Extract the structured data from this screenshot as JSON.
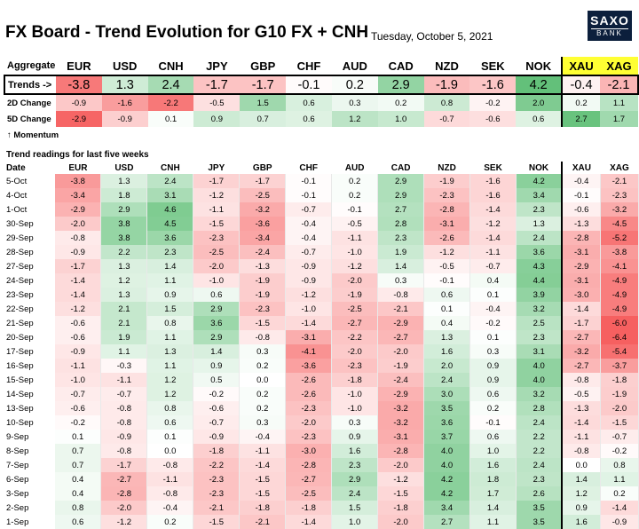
{
  "header": {
    "title": "FX Board - Trend Evolution for G10 FX + CNH",
    "date": "Tuesday, October 5, 2021",
    "logo_line1": "SAXO",
    "logo_line2": "BANK"
  },
  "columns": [
    "EUR",
    "USD",
    "CNH",
    "JPY",
    "GBP",
    "CHF",
    "AUD",
    "CAD",
    "NZD",
    "SEK",
    "NOK",
    "XAU",
    "XAG"
  ],
  "summary": {
    "aggregate_label": "Aggregate",
    "trends": {
      "label": "Trends ->",
      "values": [
        "-3.8",
        "1.3",
        "2.4",
        "-1.7",
        "-1.7",
        "-0.1",
        "0.2",
        "2.9",
        "-1.9",
        "-1.6",
        "4.2",
        "-0.4",
        "-2.1"
      ]
    },
    "change_2d": {
      "label": "2D Change",
      "values": [
        "-0.9",
        "-1.6",
        "-2.2",
        "-0.5",
        "1.5",
        "0.6",
        "0.3",
        "0.2",
        "0.8",
        "-0.2",
        "2.0",
        "0.2",
        "1.1"
      ]
    },
    "change_5d": {
      "label": "5D Change",
      "values": [
        "-2.9",
        "-0.9",
        "0.1",
        "0.9",
        "0.7",
        "0.6",
        "1.2",
        "1.0",
        "-0.7",
        "-0.6",
        "0.6",
        "2.7",
        "1.7"
      ]
    },
    "momentum_label": "↑ Momentum"
  },
  "grid": {
    "section_label": "Trend readings for last five weeks",
    "date_header": "Date",
    "rows": [
      {
        "date": "5-Oct",
        "values": [
          "-3.8",
          "1.3",
          "2.4",
          "-1.7",
          "-1.7",
          "-0.1",
          "0.2",
          "2.9",
          "-1.9",
          "-1.6",
          "4.2",
          "-0.4",
          "-2.1"
        ]
      },
      {
        "date": "4-Oct",
        "values": [
          "-3.4",
          "1.8",
          "3.1",
          "-1.2",
          "-2.5",
          "-0.1",
          "0.2",
          "2.9",
          "-2.3",
          "-1.6",
          "3.4",
          "-0.1",
          "-2.3"
        ]
      },
      {
        "date": "1-Oct",
        "values": [
          "-2.9",
          "2.9",
          "4.6",
          "-1.1",
          "-3.2",
          "-0.7",
          "-0.1",
          "2.7",
          "-2.8",
          "-1.4",
          "2.3",
          "-0.6",
          "-3.2"
        ]
      },
      {
        "date": "30-Sep",
        "values": [
          "-2.0",
          "3.8",
          "4.5",
          "-1.5",
          "-3.6",
          "-0.4",
          "-0.5",
          "2.8",
          "-3.1",
          "-1.2",
          "1.3",
          "-1.3",
          "-4.5"
        ]
      },
      {
        "date": "29-Sep",
        "values": [
          "-0.8",
          "3.8",
          "3.6",
          "-2.3",
          "-3.4",
          "-0.4",
          "-1.1",
          "2.3",
          "-2.6",
          "-1.4",
          "2.4",
          "-2.8",
          "-5.2"
        ]
      },
      {
        "date": "28-Sep",
        "values": [
          "-0.9",
          "2.2",
          "2.3",
          "-2.5",
          "-2.4",
          "-0.7",
          "-1.0",
          "1.9",
          "-1.2",
          "-1.1",
          "3.6",
          "-3.1",
          "-3.8"
        ]
      },
      {
        "date": "27-Sep",
        "values": [
          "-1.7",
          "1.3",
          "1.4",
          "-2.0",
          "-1.3",
          "-0.9",
          "-1.2",
          "1.4",
          "-0.5",
          "-0.7",
          "4.3",
          "-2.9",
          "-4.1"
        ]
      },
      {
        "date": "24-Sep",
        "values": [
          "-1.4",
          "1.2",
          "1.1",
          "-1.0",
          "-1.9",
          "-0.9",
          "-2.0",
          "0.3",
          "-0.1",
          "0.4",
          "4.4",
          "-3.1",
          "-4.9"
        ]
      },
      {
        "date": "23-Sep",
        "values": [
          "-1.4",
          "1.3",
          "0.9",
          "0.6",
          "-1.9",
          "-1.2",
          "-1.9",
          "-0.8",
          "0.6",
          "0.1",
          "3.9",
          "-3.0",
          "-4.9"
        ]
      },
      {
        "date": "22-Sep",
        "values": [
          "-1.2",
          "2.1",
          "1.5",
          "2.9",
          "-2.3",
          "-1.0",
          "-2.5",
          "-2.1",
          "0.1",
          "-0.4",
          "3.2",
          "-1.4",
          "-4.9"
        ]
      },
      {
        "date": "21-Sep",
        "values": [
          "-0.6",
          "2.1",
          "0.8",
          "3.6",
          "-1.5",
          "-1.4",
          "-2.7",
          "-2.9",
          "0.4",
          "-0.2",
          "2.5",
          "-1.7",
          "-6.0"
        ]
      },
      {
        "date": "20-Sep",
        "values": [
          "-0.6",
          "1.9",
          "1.1",
          "2.9",
          "-0.8",
          "-3.1",
          "-2.2",
          "-2.7",
          "1.3",
          "0.1",
          "2.3",
          "-2.7",
          "-6.4"
        ]
      },
      {
        "date": "17-Sep",
        "values": [
          "-0.9",
          "1.1",
          "1.3",
          "1.4",
          "0.3",
          "-4.1",
          "-2.0",
          "-2.0",
          "1.6",
          "0.3",
          "3.1",
          "-3.2",
          "-5.4"
        ]
      },
      {
        "date": "16-Sep",
        "values": [
          "-1.1",
          "-0.3",
          "1.1",
          "0.9",
          "0.2",
          "-3.6",
          "-2.3",
          "-1.9",
          "2.0",
          "0.9",
          "4.0",
          "-2.7",
          "-3.7"
        ]
      },
      {
        "date": "15-Sep",
        "values": [
          "-1.0",
          "-1.1",
          "1.2",
          "0.5",
          "0.0",
          "-2.6",
          "-1.8",
          "-2.4",
          "2.4",
          "0.9",
          "4.0",
          "-0.8",
          "-1.8"
        ]
      },
      {
        "date": "14-Sep",
        "values": [
          "-0.7",
          "-0.7",
          "1.2",
          "-0.2",
          "0.2",
          "-2.6",
          "-1.0",
          "-2.9",
          "3.0",
          "0.6",
          "3.2",
          "-0.5",
          "-1.9"
        ]
      },
      {
        "date": "13-Sep",
        "values": [
          "-0.6",
          "-0.8",
          "0.8",
          "-0.6",
          "0.2",
          "-2.3",
          "-1.0",
          "-3.2",
          "3.5",
          "0.2",
          "2.8",
          "-1.3",
          "-2.0"
        ]
      },
      {
        "date": "10-Sep",
        "values": [
          "-0.2",
          "-0.8",
          "0.6",
          "-0.7",
          "0.3",
          "-2.0",
          "0.3",
          "-3.2",
          "3.6",
          "-0.1",
          "2.4",
          "-1.4",
          "-1.5"
        ]
      },
      {
        "date": "9-Sep",
        "values": [
          "0.1",
          "-0.9",
          "0.1",
          "-0.9",
          "-0.4",
          "-2.3",
          "0.9",
          "-3.1",
          "3.7",
          "0.6",
          "2.2",
          "-1.1",
          "-0.7"
        ]
      },
      {
        "date": "8-Sep",
        "values": [
          "0.7",
          "-0.8",
          "0.0",
          "-1.8",
          "-1.1",
          "-3.0",
          "1.6",
          "-2.8",
          "4.0",
          "1.0",
          "2.2",
          "-0.8",
          "-0.2"
        ]
      },
      {
        "date": "7-Sep",
        "values": [
          "0.7",
          "-1.7",
          "-0.8",
          "-2.2",
          "-1.4",
          "-2.8",
          "2.3",
          "-2.0",
          "4.0",
          "1.6",
          "2.4",
          "0.0",
          "0.8"
        ]
      },
      {
        "date": "6-Sep",
        "values": [
          "0.4",
          "-2.7",
          "-1.1",
          "-2.3",
          "-1.5",
          "-2.7",
          "2.9",
          "-1.2",
          "4.2",
          "1.8",
          "2.3",
          "1.4",
          "1.1"
        ]
      },
      {
        "date": "3-Sep",
        "values": [
          "0.4",
          "-2.8",
          "-0.8",
          "-2.3",
          "-1.5",
          "-2.5",
          "2.4",
          "-1.5",
          "4.2",
          "1.7",
          "2.6",
          "1.2",
          "0.2"
        ]
      },
      {
        "date": "2-Sep",
        "values": [
          "0.8",
          "-2.0",
          "-0.4",
          "-2.1",
          "-1.8",
          "-1.8",
          "1.5",
          "-1.8",
          "3.4",
          "1.4",
          "3.5",
          "0.9",
          "-1.4"
        ]
      },
      {
        "date": "1-Sep",
        "values": [
          "0.6",
          "-1.2",
          "0.2",
          "-1.5",
          "-2.1",
          "-1.4",
          "1.0",
          "-2.0",
          "2.7",
          "1.1",
          "3.5",
          "1.6",
          "-0.9"
        ]
      }
    ]
  },
  "colors": {
    "positive": "#3cae5c",
    "negative": "#f25c5c",
    "neutral": "#ffffff",
    "metals_header": "#ffff33"
  }
}
